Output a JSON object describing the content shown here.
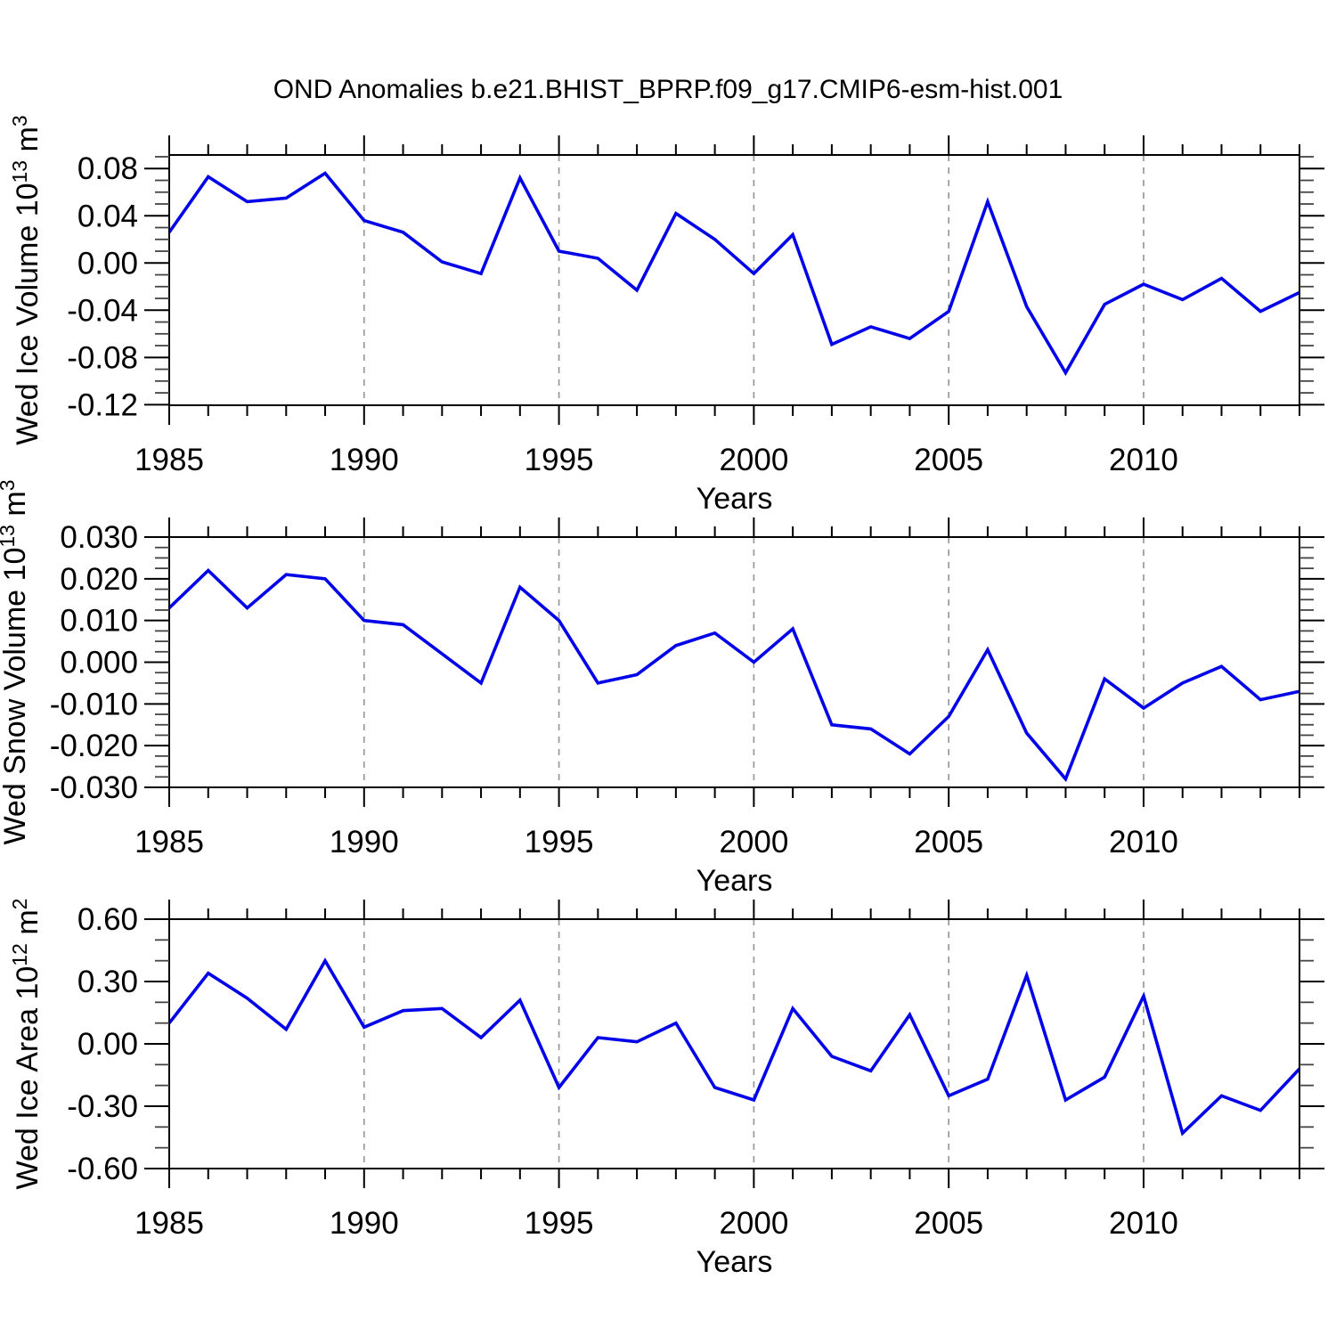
{
  "title": "OND Anomalies b.e21.BHIST_BPRP.f09_g17.CMIP6-esm-hist.001",
  "line_color": "#0202e8",
  "grid_color": "#999999",
  "axis_color": "#000000",
  "chart_data": [
    {
      "type": "line",
      "name": "ice-volume",
      "ylabel": "Wed Ice Volume 10^13 m^3",
      "ylabel_parts": {
        "text1": "Wed Ice Volume 10",
        "sup1": "13",
        "text2": " m",
        "sup2": "3"
      },
      "xlabel": "Years",
      "x_range": [
        1985,
        2014
      ],
      "ylim": [
        -0.1205,
        0.0915
      ],
      "ytick_values": [
        0.08,
        0.04,
        0.0,
        -0.04,
        -0.08,
        -0.12
      ],
      "ytick_labels": [
        "0.08",
        "0.04",
        "0.00",
        "-0.04",
        "-0.08",
        "-0.12"
      ],
      "y_minor_step": 0.01,
      "xtick_years": [
        1985,
        1990,
        1995,
        2000,
        2005,
        2010
      ],
      "xtick_labels": [
        "1985",
        "1990",
        "1995",
        "2000",
        "2005",
        "2010"
      ],
      "grid_years": [
        1990,
        1995,
        2000,
        2005,
        2010
      ],
      "years": [
        1985,
        1986,
        1987,
        1988,
        1989,
        1990,
        1991,
        1992,
        1993,
        1994,
        1995,
        1996,
        1997,
        1998,
        1999,
        2000,
        2001,
        2002,
        2003,
        2004,
        2005,
        2006,
        2007,
        2008,
        2009,
        2010,
        2011,
        2012,
        2013,
        2014
      ],
      "values": [
        0.026,
        0.073,
        0.052,
        0.055,
        0.076,
        0.036,
        0.026,
        0.001,
        -0.009,
        0.072,
        0.01,
        0.004,
        -0.023,
        0.042,
        0.02,
        -0.009,
        0.024,
        -0.069,
        -0.054,
        -0.064,
        -0.041,
        0.052,
        -0.037,
        -0.093,
        -0.035,
        -0.018,
        -0.031,
        -0.013,
        -0.041,
        -0.025
      ]
    },
    {
      "type": "line",
      "name": "snow-volume",
      "ylabel": "Wed Snow Volume 10^13 m^3",
      "ylabel_parts": {
        "text1": "Wed Snow Volume 10",
        "sup1": "13",
        "text2": " m",
        "sup2": "3"
      },
      "xlabel": "Years",
      "x_range": [
        1985,
        2014
      ],
      "ylim": [
        -0.03,
        0.03
      ],
      "ytick_values": [
        0.03,
        0.02,
        0.01,
        0.0,
        -0.01,
        -0.02,
        -0.03
      ],
      "ytick_labels": [
        "0.030",
        "0.020",
        "0.010",
        "0.000",
        "-0.010",
        "-0.020",
        "-0.030"
      ],
      "y_minor_step": 0.0025,
      "xtick_years": [
        1985,
        1990,
        1995,
        2000,
        2005,
        2010
      ],
      "xtick_labels": [
        "1985",
        "1990",
        "1995",
        "2000",
        "2005",
        "2010"
      ],
      "grid_years": [
        1990,
        1995,
        2000,
        2005,
        2010
      ],
      "years": [
        1985,
        1986,
        1987,
        1988,
        1989,
        1990,
        1991,
        1992,
        1993,
        1994,
        1995,
        1996,
        1997,
        1998,
        1999,
        2000,
        2001,
        2002,
        2003,
        2004,
        2005,
        2006,
        2007,
        2008,
        2009,
        2010,
        2011,
        2012,
        2013,
        2014
      ],
      "values": [
        0.013,
        0.022,
        0.013,
        0.021,
        0.02,
        0.01,
        0.009,
        0.002,
        -0.005,
        0.018,
        0.01,
        -0.005,
        -0.003,
        0.004,
        0.007,
        0.0,
        0.008,
        -0.015,
        -0.016,
        -0.022,
        -0.013,
        0.003,
        -0.017,
        -0.028,
        -0.004,
        -0.011,
        -0.005,
        -0.001,
        -0.009,
        -0.007
      ]
    },
    {
      "type": "line",
      "name": "ice-area",
      "ylabel": "Wed Ice Area 10^12 m^2",
      "ylabel_parts": {
        "text1": "Wed Ice Area 10",
        "sup1": "12",
        "text2": " m",
        "sup2": "2"
      },
      "xlabel": "Years",
      "x_range": [
        1985,
        2014
      ],
      "ylim": [
        -0.6,
        0.6
      ],
      "ytick_values": [
        0.6,
        0.3,
        0.0,
        -0.3,
        -0.6
      ],
      "ytick_labels": [
        "0.60",
        "0.30",
        "0.00",
        "-0.30",
        "-0.60"
      ],
      "y_minor_step": 0.1,
      "xtick_years": [
        1985,
        1990,
        1995,
        2000,
        2005,
        2010
      ],
      "xtick_labels": [
        "1985",
        "1990",
        "1995",
        "2000",
        "2005",
        "2010"
      ],
      "grid_years": [
        1990,
        1995,
        2000,
        2005,
        2010
      ],
      "years": [
        1985,
        1986,
        1987,
        1988,
        1989,
        1990,
        1991,
        1992,
        1993,
        1994,
        1995,
        1996,
        1997,
        1998,
        1999,
        2000,
        2001,
        2002,
        2003,
        2004,
        2005,
        2006,
        2007,
        2008,
        2009,
        2010,
        2011,
        2012,
        2013,
        2014
      ],
      "values": [
        0.1,
        0.34,
        0.22,
        0.07,
        0.4,
        0.08,
        0.16,
        0.17,
        0.03,
        0.21,
        -0.21,
        0.03,
        0.01,
        0.1,
        -0.21,
        -0.27,
        0.17,
        -0.06,
        -0.13,
        0.14,
        -0.25,
        -0.17,
        0.33,
        -0.27,
        -0.16,
        0.23,
        -0.43,
        -0.25,
        -0.32,
        -0.12
      ]
    }
  ]
}
